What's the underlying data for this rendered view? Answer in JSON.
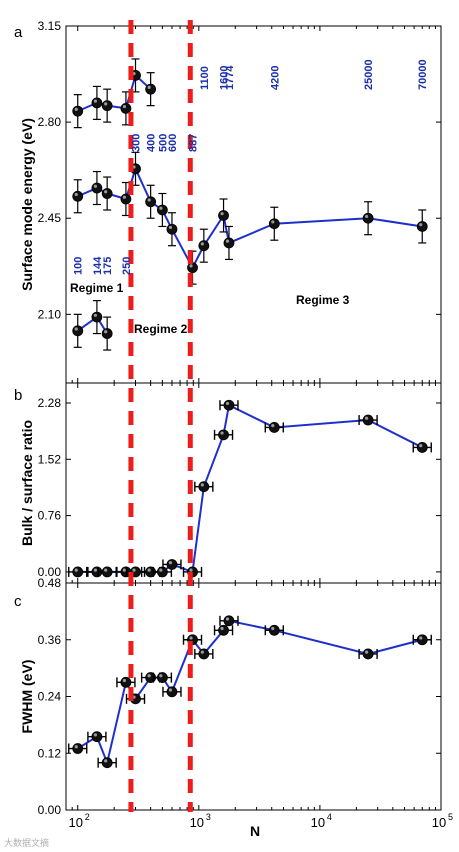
{
  "chart_data": [
    {
      "panel": "a",
      "type": "scatter",
      "xscale": "log",
      "xlim": [
        80,
        100000
      ],
      "ylim": [
        1.85,
        3.15
      ],
      "ylabel": "Surface mode energy (eV)",
      "yticks": [
        "2.10",
        "2.45",
        "2.80",
        "3.15"
      ],
      "series": [
        {
          "x": [
            100,
            144,
            175,
            250,
            300,
            400
          ],
          "y": [
            2.84,
            2.87,
            2.86,
            2.85,
            2.97,
            2.92
          ]
        },
        {
          "x": [
            100,
            144,
            175,
            250,
            300,
            400,
            500,
            600,
            887,
            1100,
            1600,
            1774,
            4200,
            25000,
            70000
          ],
          "y": [
            2.53,
            2.56,
            2.54,
            2.52,
            2.63,
            2.51,
            2.48,
            2.41,
            2.27,
            2.35,
            2.46,
            2.36,
            2.43,
            2.45,
            2.42
          ]
        },
        {
          "x": [
            100,
            144,
            175
          ],
          "y": [
            2.04,
            2.09,
            2.03
          ]
        }
      ],
      "yerr": 0.06,
      "annotations": [
        {
          "text": "100",
          "x": 100
        },
        {
          "text": "144",
          "x": 144
        },
        {
          "text": "175",
          "x": 175
        },
        {
          "text": "250",
          "x": 250
        },
        {
          "text": "300",
          "x": 300
        },
        {
          "text": "400",
          "x": 400
        },
        {
          "text": "500",
          "x": 500
        },
        {
          "text": "600",
          "x": 600
        },
        {
          "text": "887",
          "x": 887
        },
        {
          "text": "1100",
          "x": 1100
        },
        {
          "text": "1600",
          "x": 1600
        },
        {
          "text": "1774",
          "x": 1774
        },
        {
          "text": "4200",
          "x": 4200
        },
        {
          "text": "25000",
          "x": 25000
        },
        {
          "text": "70000",
          "x": 70000
        }
      ],
      "regimes": [
        "Regime 1",
        "Regime 2",
        "Regime 3"
      ]
    },
    {
      "panel": "b",
      "type": "line",
      "xscale": "log",
      "xlim": [
        80,
        100000
      ],
      "ylim": [
        -0.15,
        2.55
      ],
      "ylabel": "Bulk / surface ratio",
      "yticks": [
        "0.00",
        "0.76",
        "1.52",
        "2.28"
      ],
      "series": [
        {
          "x": [
            100,
            144,
            175,
            250,
            300,
            400,
            500,
            600,
            887,
            1100,
            1600,
            1774,
            4200,
            25000,
            70000
          ],
          "y": [
            0.0,
            0.0,
            0.0,
            0.0,
            0.0,
            0.0,
            0.0,
            0.1,
            0.0,
            1.15,
            1.85,
            2.25,
            1.95,
            2.05,
            1.68
          ]
        }
      ]
    },
    {
      "panel": "c",
      "type": "line",
      "xscale": "log",
      "xlim": [
        80,
        100000
      ],
      "ylim": [
        0.0,
        0.48
      ],
      "ylabel": "FWHM (eV)",
      "xlabel": "N",
      "yticks": [
        "0.00",
        "0.12",
        "0.24",
        "0.36",
        "0.48"
      ],
      "xticks": [
        {
          "base": "10",
          "exp": "2"
        },
        {
          "base": "10",
          "exp": "3"
        },
        {
          "base": "10",
          "exp": "4"
        },
        {
          "base": "10",
          "exp": "5"
        }
      ],
      "series": [
        {
          "x": [
            100,
            144,
            175,
            250,
            300,
            400,
            500,
            600,
            887,
            1100,
            1600,
            1774,
            4200,
            25000,
            70000
          ],
          "y": [
            0.13,
            0.155,
            0.1,
            0.27,
            0.235,
            0.28,
            0.28,
            0.25,
            0.36,
            0.33,
            0.38,
            0.4,
            0.38,
            0.33,
            0.36
          ]
        }
      ]
    }
  ],
  "regime_boundaries": [
    275,
    850
  ],
  "colors": {
    "line": "#1f2fcc",
    "marker": "#111111",
    "boundary": "#ee1c1c",
    "annotation": "#1a2fa8"
  },
  "watermark": "大数据文摘"
}
